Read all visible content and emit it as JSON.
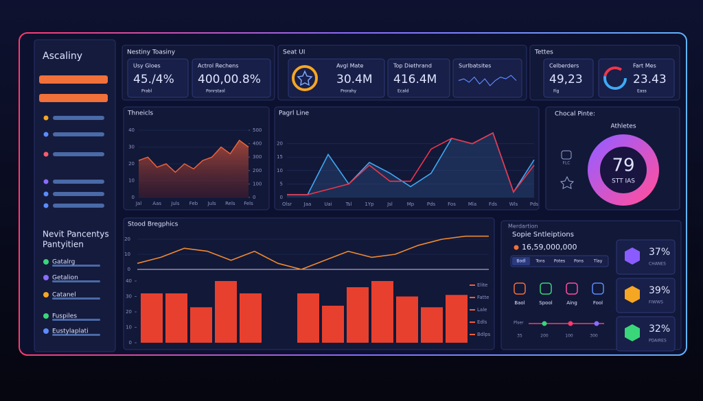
{
  "sidebar": {
    "title": "Ascaliny",
    "section_title": [
      "Nevit Pancentys",
      "Pantyitien"
    ],
    "items": [
      "Gatalrg",
      "Getalion",
      "Catanel",
      "Fuspiles",
      "Eustylaplati"
    ]
  },
  "top_panels": [
    {
      "title": "Nestiny Toasiny",
      "cards": [
        {
          "label": "Usy Gloes",
          "value": "45./4%",
          "sub": "Prabl"
        },
        {
          "label": "Actrol Rechens",
          "value": "400,00.8%",
          "sub": "Ponrstaol"
        }
      ]
    },
    {
      "title": "Seat UI",
      "cards": [
        {
          "label": "Avgl Mate",
          "value": "30.4M",
          "sub": "Prorahy"
        },
        {
          "label": "Top Diethrand",
          "value": "416.4M",
          "sub": "Ecald"
        },
        {
          "label": "Surlbatsites",
          "sparkline": [
            5,
            6,
            4,
            7,
            3,
            6,
            2,
            5,
            7,
            6,
            8,
            5
          ]
        }
      ]
    },
    {
      "title": "Tettes",
      "cards": [
        {
          "label": "Celberders",
          "value": "49,23",
          "sub": "Fig"
        },
        {
          "label": "Fart Mes",
          "value": "23.43",
          "sub": "Eass"
        }
      ]
    }
  ],
  "area_chart": {
    "type": "area",
    "title": "Thneicls",
    "categories": [
      "Jal",
      null,
      "Aas",
      null,
      "Juls",
      null,
      "Feb",
      null,
      "Juls",
      null,
      "Rels",
      null,
      "Fels"
    ],
    "values": [
      22,
      24,
      18,
      20,
      15,
      20,
      17,
      22,
      24,
      30,
      26,
      34,
      30
    ],
    "color": "#e8643c",
    "ylim": [
      0,
      40
    ],
    "yticks": [
      0,
      10,
      20,
      30,
      40
    ],
    "y2lim": [
      0,
      500
    ],
    "y2ticks": [
      0,
      100,
      200,
      300,
      400,
      500
    ]
  },
  "line_chart": {
    "type": "line",
    "title": "Pagrl Line",
    "categories": [
      "Olsr",
      "Jaa",
      "Uai",
      "Tsl",
      "1Yp",
      "Jsl",
      "Mp",
      "Pds",
      "Fos",
      "Mla",
      "Fds",
      "Wls",
      "Pds"
    ],
    "series": [
      {
        "color": "#3fa9f5",
        "values": [
          1,
          1,
          16,
          5,
          13,
          9,
          4,
          9,
          22,
          20,
          24,
          2,
          14
        ]
      },
      {
        "color": "#f0344a",
        "values": [
          1,
          1,
          3,
          5,
          12,
          6,
          6,
          18,
          22,
          20,
          24,
          2,
          12
        ]
      }
    ],
    "ylim": [
      0,
      25
    ],
    "yticks": [
      0,
      5,
      10,
      15,
      20
    ]
  },
  "donut": {
    "title": "Chocal Pinte:",
    "label": "Athletes",
    "center_value": "79",
    "center_sub": "STT IAS",
    "icon_label": "FLC"
  },
  "bottom_chart": {
    "title": "Stood Bregphics",
    "line": {
      "type": "line",
      "color": "#f08a30",
      "values": [
        4,
        8,
        14,
        12,
        6,
        12,
        4,
        0,
        6,
        12,
        8,
        10,
        16,
        20,
        22,
        22
      ],
      "ylim": [
        0,
        25
      ],
      "yticks": [
        0,
        10,
        20
      ]
    },
    "bars": {
      "type": "bar",
      "color": "#e8402e",
      "values": [
        32,
        32,
        23,
        40,
        32,
        32,
        24,
        36,
        40,
        30,
        23,
        31
      ],
      "ylim": [
        0,
        40
      ],
      "yticks": [
        0,
        10,
        20,
        30,
        40
      ]
    },
    "legend": [
      "Elite",
      "Fatte",
      "Lale",
      "Edls",
      "Bdlps"
    ]
  },
  "side_panel": {
    "title": "Merdartion",
    "subtitle": "Sopie Sntleiptions",
    "amount": "16,59,000,000",
    "tabs": [
      "Bodl",
      "Tons",
      "Potes",
      "Pons",
      "Tlay"
    ],
    "icons": [
      "Baol",
      "Spool",
      "Aing",
      "Fool"
    ],
    "slider_label": "Plser",
    "slider_ticks": [
      "35",
      "200",
      "100",
      "300"
    ],
    "stats": [
      {
        "value": "37%",
        "label": "CHANES"
      },
      {
        "value": "39%",
        "label": "FIWWS"
      },
      {
        "value": "32%",
        "label": "PDAIRES"
      }
    ]
  }
}
